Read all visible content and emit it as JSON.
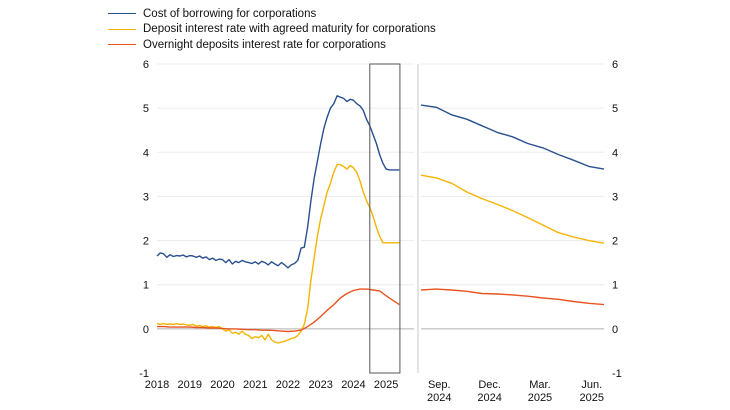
{
  "chart_data": {
    "type": "line",
    "legend_position": "top-left",
    "colors": {
      "blue": "#2a4f8f",
      "yellow": "#f5b400",
      "red": "#e8541e",
      "zero": "#b0b0b0",
      "box": "#555555",
      "divider": "#c8c8c8"
    },
    "ylim": [
      -1,
      6
    ],
    "yticks": [
      "-1",
      "0",
      "1",
      "2",
      "3",
      "4",
      "5",
      "6"
    ],
    "series_names": [
      "Cost of borrowing for corporations",
      "Deposit interest rate with agreed maturity for corporations",
      "Overnight deposits interest rate for corporations"
    ],
    "left_panel": {
      "xlim": [
        2018,
        2025.85
      ],
      "xticks": [
        "2018",
        "2019",
        "2020",
        "2021",
        "2022",
        "2023",
        "2024",
        "2025"
      ],
      "highlight_range": [
        2024.5,
        2025.42
      ],
      "series": [
        {
          "name": "Cost of borrowing for corporations",
          "color": "#2a4f8f",
          "x": [
            2018.0,
            2018.1,
            2018.2,
            2018.3,
            2018.4,
            2018.5,
            2018.6,
            2018.7,
            2018.8,
            2018.9,
            2019.0,
            2019.1,
            2019.2,
            2019.3,
            2019.4,
            2019.5,
            2019.6,
            2019.7,
            2019.8,
            2019.9,
            2020.0,
            2020.1,
            2020.2,
            2020.3,
            2020.4,
            2020.5,
            2020.6,
            2020.7,
            2020.8,
            2020.9,
            2021.0,
            2021.1,
            2021.2,
            2021.3,
            2021.4,
            2021.5,
            2021.6,
            2021.7,
            2021.8,
            2021.9,
            2022.0,
            2022.1,
            2022.2,
            2022.3,
            2022.4,
            2022.5,
            2022.6,
            2022.7,
            2022.8,
            2022.9,
            2023.0,
            2023.1,
            2023.2,
            2023.3,
            2023.4,
            2023.5,
            2023.6,
            2023.7,
            2023.8,
            2023.9,
            2024.0,
            2024.1,
            2024.2,
            2024.3,
            2024.4,
            2024.5,
            2024.6,
            2024.7,
            2024.8,
            2024.9,
            2025.0,
            2025.1,
            2025.2,
            2025.3,
            2025.4
          ],
          "y": [
            1.65,
            1.72,
            1.7,
            1.62,
            1.68,
            1.64,
            1.66,
            1.65,
            1.67,
            1.63,
            1.66,
            1.65,
            1.62,
            1.65,
            1.6,
            1.63,
            1.57,
            1.6,
            1.55,
            1.58,
            1.57,
            1.5,
            1.57,
            1.47,
            1.53,
            1.5,
            1.55,
            1.52,
            1.5,
            1.48,
            1.52,
            1.47,
            1.53,
            1.5,
            1.45,
            1.52,
            1.47,
            1.43,
            1.5,
            1.45,
            1.38,
            1.45,
            1.48,
            1.55,
            1.83,
            1.85,
            2.3,
            2.9,
            3.4,
            3.8,
            4.2,
            4.55,
            4.8,
            5.0,
            5.1,
            5.28,
            5.25,
            5.22,
            5.15,
            5.2,
            5.18,
            5.1,
            5.05,
            4.95,
            4.75,
            4.6,
            4.4,
            4.2,
            3.95,
            3.75,
            3.62,
            3.6,
            3.6,
            3.6,
            3.6
          ]
        },
        {
          "name": "Deposit interest rate with agreed maturity for corporations",
          "color": "#f5b400",
          "x": [
            2018.0,
            2018.1,
            2018.2,
            2018.3,
            2018.4,
            2018.5,
            2018.6,
            2018.7,
            2018.8,
            2018.9,
            2019.0,
            2019.1,
            2019.2,
            2019.3,
            2019.4,
            2019.5,
            2019.6,
            2019.7,
            2019.8,
            2019.9,
            2020.0,
            2020.1,
            2020.2,
            2020.3,
            2020.4,
            2020.5,
            2020.6,
            2020.7,
            2020.8,
            2020.9,
            2021.0,
            2021.1,
            2021.2,
            2021.3,
            2021.4,
            2021.5,
            2021.6,
            2021.7,
            2021.8,
            2021.9,
            2022.0,
            2022.1,
            2022.2,
            2022.3,
            2022.4,
            2022.5,
            2022.6,
            2022.7,
            2022.8,
            2022.9,
            2023.0,
            2023.1,
            2023.2,
            2023.3,
            2023.4,
            2023.5,
            2023.6,
            2023.7,
            2023.8,
            2023.9,
            2024.0,
            2024.1,
            2024.2,
            2024.3,
            2024.4,
            2024.5,
            2024.6,
            2024.7,
            2024.8,
            2024.9,
            2025.0,
            2025.1,
            2025.2,
            2025.3,
            2025.4
          ],
          "y": [
            0.12,
            0.1,
            0.12,
            0.1,
            0.11,
            0.1,
            0.12,
            0.1,
            0.11,
            0.09,
            0.08,
            0.1,
            0.06,
            0.08,
            0.05,
            0.07,
            0.04,
            0.05,
            0.03,
            0.05,
            0.0,
            -0.05,
            -0.02,
            -0.1,
            -0.08,
            -0.12,
            -0.05,
            -0.12,
            -0.15,
            -0.22,
            -0.18,
            -0.2,
            -0.15,
            -0.25,
            -0.12,
            -0.25,
            -0.3,
            -0.32,
            -0.3,
            -0.28,
            -0.25,
            -0.22,
            -0.2,
            -0.15,
            -0.05,
            0.1,
            0.45,
            1.1,
            1.6,
            2.1,
            2.5,
            2.8,
            3.1,
            3.3,
            3.55,
            3.72,
            3.72,
            3.68,
            3.62,
            3.7,
            3.65,
            3.55,
            3.35,
            3.1,
            2.9,
            2.75,
            2.55,
            2.3,
            2.1,
            1.95,
            1.95,
            1.95,
            1.95,
            1.95,
            1.95
          ]
        },
        {
          "name": "Overnight deposits interest rate for corporations",
          "color": "#e8541e",
          "x": [
            2018.0,
            2018.2,
            2018.4,
            2018.6,
            2018.8,
            2019.0,
            2019.2,
            2019.4,
            2019.6,
            2019.8,
            2020.0,
            2020.2,
            2020.4,
            2020.6,
            2020.8,
            2021.0,
            2021.2,
            2021.4,
            2021.6,
            2021.8,
            2022.0,
            2022.2,
            2022.4,
            2022.6,
            2022.8,
            2023.0,
            2023.2,
            2023.4,
            2023.6,
            2023.8,
            2024.0,
            2024.2,
            2024.4,
            2024.6,
            2024.8,
            2025.0,
            2025.2,
            2025.4
          ],
          "y": [
            0.05,
            0.05,
            0.04,
            0.04,
            0.04,
            0.04,
            0.03,
            0.03,
            0.02,
            0.02,
            0.01,
            0.0,
            0.0,
            -0.01,
            -0.02,
            -0.02,
            -0.03,
            -0.03,
            -0.04,
            -0.05,
            -0.06,
            -0.05,
            -0.03,
            0.05,
            0.15,
            0.28,
            0.42,
            0.55,
            0.7,
            0.8,
            0.87,
            0.9,
            0.9,
            0.88,
            0.86,
            0.75,
            0.65,
            0.55
          ]
        }
      ]
    },
    "right_panel": {
      "xlim": [
        0,
        12
      ],
      "xticks": [
        {
          "x": 1.2,
          "line1": "Sep.",
          "line2": "2024"
        },
        {
          "x": 4.5,
          "line1": "Dec.",
          "line2": "2024"
        },
        {
          "x": 7.8,
          "line1": "Mar.",
          "line2": "2025"
        },
        {
          "x": 11.2,
          "line1": "Jun.",
          "line2": "2025"
        }
      ],
      "series": [
        {
          "name": "Cost of borrowing for corporations",
          "color": "#2a4f8f",
          "x": [
            0,
            1,
            2,
            3,
            4,
            5,
            6,
            7,
            8,
            9,
            10,
            11,
            12
          ],
          "y": [
            5.07,
            5.02,
            4.85,
            4.75,
            4.6,
            4.45,
            4.35,
            4.2,
            4.1,
            3.95,
            3.82,
            3.68,
            3.62
          ]
        },
        {
          "name": "Deposit interest rate with agreed maturity for corporations",
          "color": "#f5b400",
          "x": [
            0,
            1,
            2,
            3,
            4,
            5,
            6,
            7,
            8,
            9,
            10,
            11,
            12
          ],
          "y": [
            3.48,
            3.42,
            3.3,
            3.1,
            2.95,
            2.82,
            2.68,
            2.52,
            2.35,
            2.18,
            2.08,
            2.0,
            1.94
          ]
        },
        {
          "name": "Overnight deposits interest rate for corporations",
          "color": "#e8541e",
          "x": [
            0,
            1,
            2,
            3,
            4,
            5,
            6,
            7,
            8,
            9,
            10,
            11,
            12
          ],
          "y": [
            0.88,
            0.9,
            0.88,
            0.85,
            0.8,
            0.79,
            0.77,
            0.74,
            0.7,
            0.67,
            0.62,
            0.58,
            0.55
          ]
        }
      ]
    }
  }
}
